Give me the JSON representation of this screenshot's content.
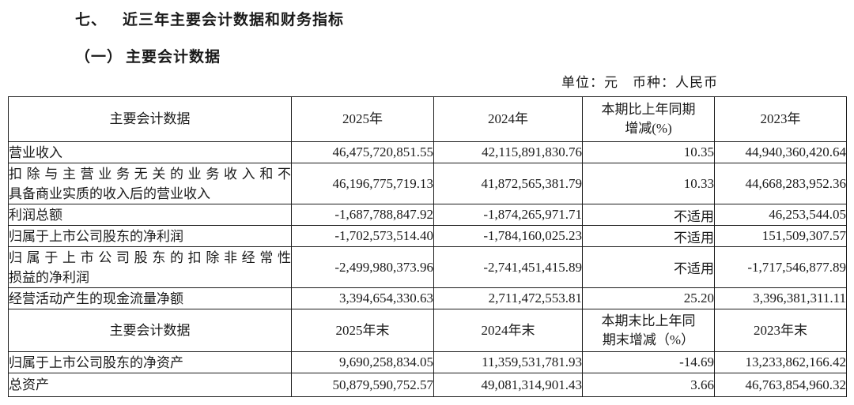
{
  "page": {
    "section_number": "七、",
    "section_title": "近三年主要会计数据和财务指标",
    "subsection_number": "（一）",
    "subsection_title": "主要会计数据",
    "unit_note": "单位：元　币种：人民币"
  },
  "table": {
    "section1": {
      "header": {
        "metric": "主要会计数据",
        "y1": "2025年",
        "y2": "2024年",
        "pct_line1": "本期比上年同期",
        "pct_line2": "增减(%)",
        "y3": "2023年"
      },
      "rows": [
        {
          "label": "营业收入",
          "v1": "46,475,720,851.55",
          "v2": "42,115,891,830.76",
          "pct": "10.35",
          "v3": "44,940,360,420.64"
        },
        {
          "label": "扣除与主营业务无关的业务收入和不",
          "label2": "具备商业实质的收入后的营业收入",
          "v1": "46,196,775,719.13",
          "v2": "41,872,565,381.79",
          "pct": "10.33",
          "v3": "44,668,283,952.36"
        },
        {
          "label": "利润总额",
          "v1": "-1,687,788,847.92",
          "v2": "-1,874,265,971.71",
          "pct": "不适用",
          "v3": "46,253,544.05"
        },
        {
          "label": "归属于上市公司股东的净利润",
          "v1": "-1,702,573,514.40",
          "v2": "-1,784,160,025.23",
          "pct": "不适用",
          "v3": "151,509,307.57"
        },
        {
          "label": "归属于上市公司股东的扣除非经常性",
          "label2": "损益的净利润",
          "v1": "-2,499,980,373.96",
          "v2": "-2,741,451,415.89",
          "pct": "不适用",
          "v3": "-1,717,546,877.89"
        },
        {
          "label": "经营活动产生的现金流量净额",
          "v1": "3,394,654,330.63",
          "v2": "2,711,472,553.81",
          "pct": "25.20",
          "v3": "3,396,381,311.11"
        }
      ]
    },
    "section2": {
      "header": {
        "metric": "主要会计数据",
        "y1": "2025年末",
        "y2": "2024年末",
        "pct_line1": "本期末比上年同",
        "pct_line2": "期末增减（%）",
        "y3": "2023年末"
      },
      "rows": [
        {
          "label": "归属于上市公司股东的净资产",
          "v1": "9,690,258,834.05",
          "v2": "11,359,531,781.93",
          "pct": "-14.69",
          "v3": "13,233,862,166.42"
        },
        {
          "label": "总资产",
          "v1": "50,879,590,752.57",
          "v2": "49,081,314,901.43",
          "pct": "3.66",
          "v3": "46,763,854,960.32"
        }
      ]
    }
  }
}
